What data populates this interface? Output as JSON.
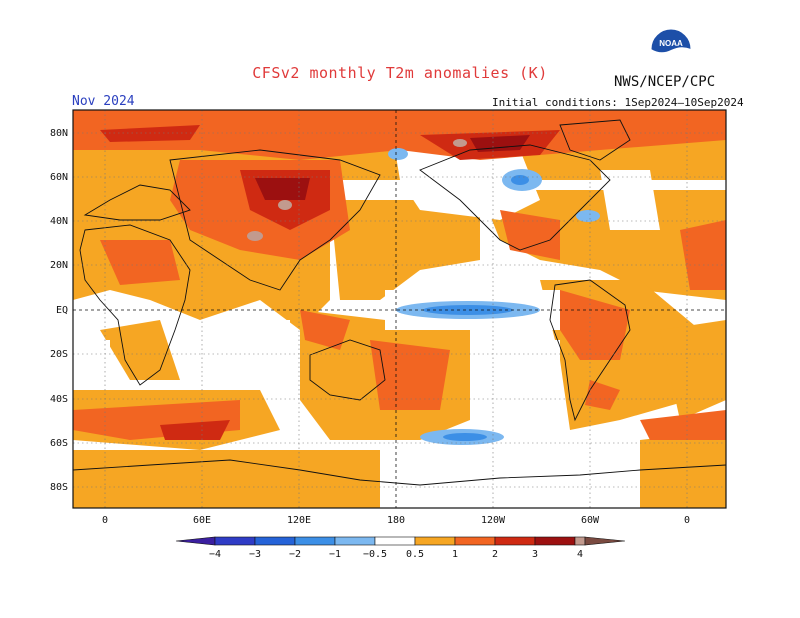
{
  "title": "CFSv2 monthly T2m anomalies (K)",
  "agency": "NWS/NCEP/CPC",
  "logo_text": "NOAA",
  "month_label": "Nov 2024",
  "initial_conditions": "Initial conditions: 1Sep2024–10Sep2024",
  "lat_labels": [
    "80N",
    "60N",
    "40N",
    "20N",
    "EQ",
    "20S",
    "40S",
    "60S",
    "80S"
  ],
  "lon_labels": [
    "0",
    "60E",
    "120E",
    "180",
    "120W",
    "60W",
    "0"
  ],
  "colorbar": {
    "labels": [
      "−4",
      "−3",
      "−2",
      "−1",
      "−0.5",
      "0.5",
      "1",
      "2",
      "3",
      "4"
    ],
    "colors": {
      "lt_-4": "#3b1fa0",
      "-4_-3": "#2f3cc6",
      "-3_-2": "#2563d8",
      "-2_-1": "#3c8fe6",
      "-1_-0.5": "#7cb8f0",
      "neutral": "#ffffff",
      "0.5_1": "#f6a623",
      "1_2": "#f26522",
      "2_3": "#cf2a12",
      "3_4": "#9c1010",
      "4_5": "#c29a8e",
      "gt_5": "#7a4a40"
    }
  },
  "colors": {
    "title": "#e03a3a",
    "month": "#2a3fbf",
    "warm_weak": "#f6a623",
    "warm_mod": "#f26522",
    "warm_strong": "#cf2a12",
    "warm_extreme": "#9c1010",
    "cool_weak": "#7cb8f0",
    "cool_mod": "#3c8fe6"
  }
}
